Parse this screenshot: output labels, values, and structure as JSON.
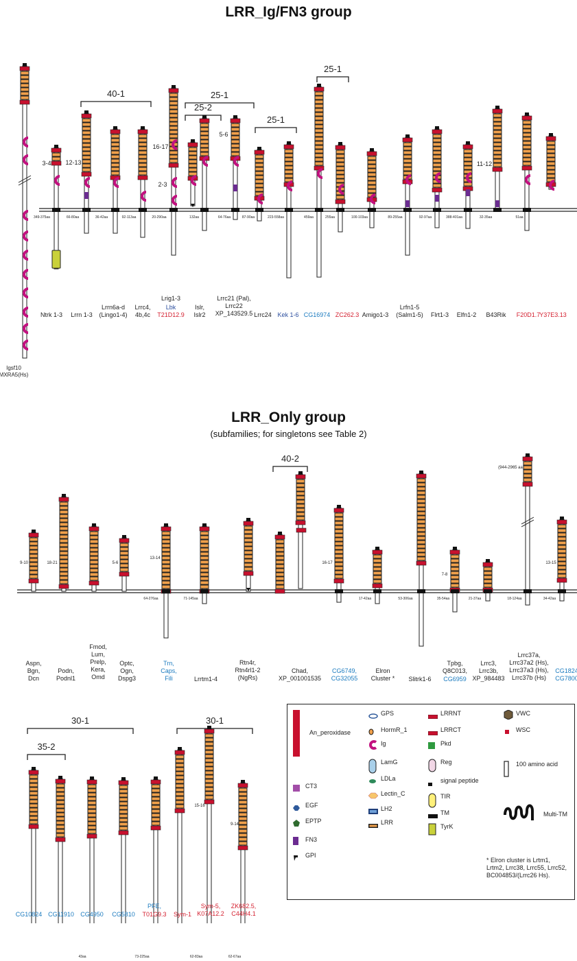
{
  "titles": {
    "group1": "LRR_Ig/FN3 group",
    "group2": "LRR_Only group",
    "group2_sub": "(subfamilies; for singletons see Table 2)"
  },
  "g1": {
    "brackets": [
      {
        "label": "40-1"
      },
      {
        "label": "25-1"
      },
      {
        "label": "25-2"
      },
      {
        "label": "25-1"
      },
      {
        "label": "25-1"
      }
    ],
    "count_labels": [
      "3-4",
      "12-13",
      "16-17",
      "2-3",
      "5-6",
      "11-12"
    ],
    "aa_labels": [
      "349-375aa",
      "66-80aa",
      "36-42aa",
      "92-113aa",
      "20-290aa",
      "132aa",
      "64-76aa",
      "87-90aa",
      "223-558aa",
      "459aa",
      "255aa",
      "100-103aa",
      "89-255aa",
      "92-97aa",
      "388-401aa",
      "32-35aa",
      "51aa"
    ],
    "names": [
      {
        "lines": [
          "Ntrk 1-3"
        ],
        "color": "#222222"
      },
      {
        "lines": [
          "Lrrn 1-3"
        ],
        "color": "#222222"
      },
      {
        "lines": [
          "Lrrn6a-d",
          "(Lingo1-4)"
        ],
        "color": "#222222"
      },
      {
        "lines": [
          "Lrrc4,",
          "4b,4c"
        ],
        "color": "#222222"
      },
      {
        "lines": [
          "Lrig1-3"
        ],
        "color": "#222222"
      },
      {
        "lines": [
          "Lbk"
        ],
        "color": "#2d4f9e"
      },
      {
        "lines": [
          "T21D12.9"
        ],
        "color": "#d42030"
      },
      {
        "lines": [
          "Islr,",
          "Islr2"
        ],
        "color": "#222222"
      },
      {
        "lines": [
          "Lrrc21 (Pal),",
          "Lrrc22",
          "XP_143529.5"
        ],
        "color": "#222222"
      },
      {
        "lines": [
          "Lrrc24"
        ],
        "color": "#222222"
      },
      {
        "lines": [
          "Kek 1-6"
        ],
        "color": "#2d4f9e"
      },
      {
        "lines": [
          "CG16974"
        ],
        "color": "#1a7abf"
      },
      {
        "lines": [
          "ZC262.3"
        ],
        "color": "#d42030"
      },
      {
        "lines": [
          "Amigo1-3"
        ],
        "color": "#222222"
      },
      {
        "lines": [
          "Lrfn1-5",
          "(Salm1-5)"
        ],
        "color": "#222222"
      },
      {
        "lines": [
          "Flrt1-3"
        ],
        "color": "#222222"
      },
      {
        "lines": [
          "Elfn1-2"
        ],
        "color": "#222222"
      },
      {
        "lines": [
          "B43Rik"
        ],
        "color": "#222222"
      },
      {
        "lines": [
          "F20D1.7"
        ],
        "color": "#d42030"
      },
      {
        "lines": [
          "Y37E3.13"
        ],
        "color": "#d42030"
      }
    ],
    "igsf_label": [
      "Igsf10",
      "MXRA5(Hs)"
    ]
  },
  "g2": {
    "brackets": [
      {
        "label": "40-2"
      }
    ],
    "count_labels": [
      "9-10",
      "18-21",
      "5-6",
      "13-14",
      "16-17",
      "7-8",
      "13-15"
    ],
    "aa_labels": [
      "64-276aa",
      "71-145aa",
      "17-42aa",
      "53-306aa",
      "35-54aa",
      "21-37aa",
      "18-124aa",
      "34-42aa"
    ],
    "long_note": "(944-2965 aa)",
    "names": [
      {
        "lines": [
          "Aspn,",
          "Bgn,",
          "Dcn"
        ],
        "color": "#222222"
      },
      {
        "lines": [
          "Podn,",
          "Podnl1"
        ],
        "color": "#222222"
      },
      {
        "lines": [
          "Fmod,",
          "Lum,",
          "Prelp,",
          "Kera,",
          "Omd"
        ],
        "color": "#222222"
      },
      {
        "lines": [
          "Optc,",
          "Ogn,",
          "Dspg3"
        ],
        "color": "#222222"
      },
      {
        "lines": [
          "Trn,",
          "Caps,",
          "Fili"
        ],
        "color": "#1a7abf"
      },
      {
        "lines": [
          "Lrrtm1-4"
        ],
        "color": "#222222"
      },
      {
        "lines": [
          "Rtn4r,",
          "Rtn4rl1-2",
          "(NgRs)"
        ],
        "color": "#222222"
      },
      {
        "lines": [
          "Chad,",
          "XP_001001535"
        ],
        "color": "#222222"
      },
      {
        "lines": [
          "CG6749,",
          "CG32055"
        ],
        "color": "#1a7abf"
      },
      {
        "lines": [
          "Elron",
          "Cluster *"
        ],
        "color": "#222222"
      },
      {
        "lines": [
          "Slitrk1-6"
        ],
        "color": "#222222"
      },
      {
        "lines": [
          "Tpbg,",
          "Q8C013,"
        ],
        "color": "#222222"
      },
      {
        "lines": [
          "CG6959"
        ],
        "color": "#1a7abf"
      },
      {
        "lines": [
          "Lrrc3,",
          "Lrrc3b,",
          "XP_984483"
        ],
        "color": "#222222"
      },
      {
        "lines": [
          "Lrrc37a,",
          "Lrrc37a2 (Hs),",
          "Lrrc37a3 (Hs),",
          "Lrrc37b (Hs)"
        ],
        "color": "#222222"
      },
      {
        "lines": [
          "CG1824",
          "CG7800"
        ],
        "color": "#1a7abf"
      }
    ]
  },
  "g3": {
    "brackets": [
      {
        "label": "30-1"
      },
      {
        "label": "35-2"
      },
      {
        "label": "30-1"
      }
    ],
    "count_labels": [
      "15-16",
      "9-14"
    ],
    "aa_labels": [
      "43aa",
      "73-225aa",
      "62-83aa",
      "62-67aa"
    ],
    "names": [
      {
        "lines": [
          "CG10824"
        ],
        "color": "#1a7abf"
      },
      {
        "lines": [
          "CG11910"
        ],
        "color": "#1a7abf"
      },
      {
        "lines": [
          "CG4950"
        ],
        "color": "#1a7abf"
      },
      {
        "lines": [
          "CG5810"
        ],
        "color": "#1a7abf"
      },
      {
        "lines": [
          "PFE,"
        ],
        "color": "#1a7abf"
      },
      {
        "lines": [
          "T01G9.3"
        ],
        "color": "#d42030"
      },
      {
        "lines": [
          "Sym-1"
        ],
        "color": "#d42030"
      },
      {
        "lines": [
          "Sym-5,",
          "K07A12.2"
        ],
        "color": "#d42030"
      },
      {
        "lines": [
          "ZK682.5,",
          "C44H4.1"
        ],
        "color": "#d42030"
      }
    ]
  },
  "legend": {
    "items": [
      {
        "name": "An_peroxidase",
        "icon": "an-peroxidase"
      },
      {
        "name": "CT3",
        "icon": "ct3"
      },
      {
        "name": "EGF",
        "icon": "egf"
      },
      {
        "name": "EPTP",
        "icon": "eptp"
      },
      {
        "name": "FN3",
        "icon": "fn3"
      },
      {
        "name": "GPI",
        "icon": "gpi"
      },
      {
        "name": "GPS",
        "icon": "gps"
      },
      {
        "name": "HormR_1",
        "icon": "hormr"
      },
      {
        "name": "Ig",
        "icon": "ig"
      },
      {
        "name": "LamG",
        "icon": "lamg"
      },
      {
        "name": "LDLa",
        "icon": "ldla"
      },
      {
        "name": "Lectin_C",
        "icon": "lectin"
      },
      {
        "name": "LH2",
        "icon": "lh2"
      },
      {
        "name": "LRR",
        "icon": "lrr"
      },
      {
        "name": "LRRNT",
        "icon": "lrrnt"
      },
      {
        "name": "LRRCT",
        "icon": "lrrct"
      },
      {
        "name": "Pkd",
        "icon": "pkd"
      },
      {
        "name": "Reg",
        "icon": "reg"
      },
      {
        "name": "signal peptide",
        "icon": "signal-peptide"
      },
      {
        "name": "TIR",
        "icon": "tir"
      },
      {
        "name": "TM",
        "icon": "tm"
      },
      {
        "name": "TyrK",
        "icon": "tyrk"
      },
      {
        "name": "VWC",
        "icon": "vwc"
      },
      {
        "name": "WSC",
        "icon": "wsc"
      },
      {
        "name": "100 amino acid",
        "icon": "scale-bar"
      },
      {
        "name": "Multi-TM",
        "icon": "multi-tm"
      }
    ],
    "footnote": [
      "* Elron cluster is Lrtm1,",
      "Lrtm2, Lrrc38, Lrrc55, Lrrc52,",
      "BC004853/(Lrrc26 Hs)."
    ]
  }
}
